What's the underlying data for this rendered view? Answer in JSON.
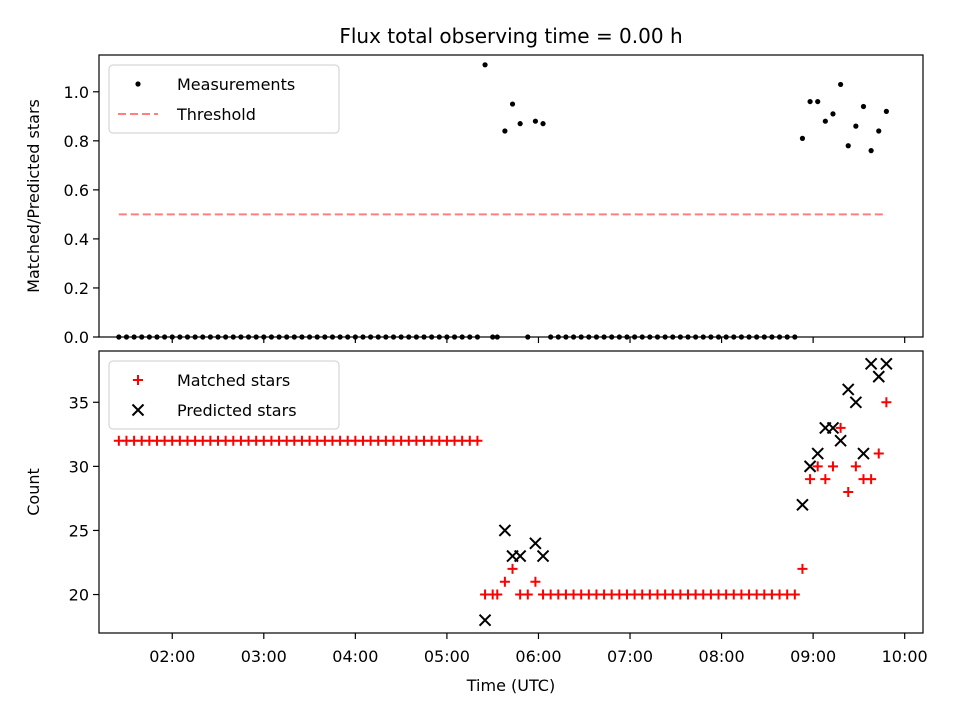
{
  "figure": {
    "title": "Flux total observing time = 0.00 h"
  },
  "chart_data": [
    {
      "type": "scatter",
      "xlabel": "",
      "ylabel": "Matched/Predicted stars",
      "xlim": [
        "01:12",
        "10:12"
      ],
      "ylim": [
        0,
        1.15
      ],
      "yticks": [
        "0.0",
        "0.2",
        "0.4",
        "0.6",
        "0.8",
        "1.0"
      ],
      "legend": {
        "placement": "upper-left",
        "entries": [
          "Measurements",
          "Threshold"
        ]
      },
      "series": [
        {
          "name": "Measurements",
          "marker": "dot",
          "color": "#000000",
          "points": [
            [
              "01:25",
              0
            ],
            [
              "01:30",
              0
            ],
            [
              "01:35",
              0
            ],
            [
              "01:40",
              0
            ],
            [
              "01:45",
              0
            ],
            [
              "01:50",
              0
            ],
            [
              "01:55",
              0
            ],
            [
              "02:00",
              0
            ],
            [
              "02:05",
              0
            ],
            [
              "02:10",
              0
            ],
            [
              "02:15",
              0
            ],
            [
              "02:20",
              0
            ],
            [
              "02:25",
              0
            ],
            [
              "02:30",
              0
            ],
            [
              "02:35",
              0
            ],
            [
              "02:40",
              0
            ],
            [
              "02:45",
              0
            ],
            [
              "02:50",
              0
            ],
            [
              "02:55",
              0
            ],
            [
              "03:00",
              0
            ],
            [
              "03:05",
              0
            ],
            [
              "03:10",
              0
            ],
            [
              "03:15",
              0
            ],
            [
              "03:20",
              0
            ],
            [
              "03:25",
              0
            ],
            [
              "03:30",
              0
            ],
            [
              "03:35",
              0
            ],
            [
              "03:40",
              0
            ],
            [
              "03:45",
              0
            ],
            [
              "03:50",
              0
            ],
            [
              "03:55",
              0
            ],
            [
              "04:00",
              0
            ],
            [
              "04:05",
              0
            ],
            [
              "04:10",
              0
            ],
            [
              "04:15",
              0
            ],
            [
              "04:20",
              0
            ],
            [
              "04:25",
              0
            ],
            [
              "04:30",
              0
            ],
            [
              "04:35",
              0
            ],
            [
              "04:40",
              0
            ],
            [
              "04:45",
              0
            ],
            [
              "04:50",
              0
            ],
            [
              "04:55",
              0
            ],
            [
              "05:00",
              0
            ],
            [
              "05:05",
              0
            ],
            [
              "05:10",
              0
            ],
            [
              "05:15",
              0
            ],
            [
              "05:20",
              0
            ],
            [
              "05:25",
              1.11
            ],
            [
              "05:30",
              0
            ],
            [
              "05:33",
              0
            ],
            [
              "05:38",
              0.84
            ],
            [
              "05:43",
              0.95
            ],
            [
              "05:48",
              0.87
            ],
            [
              "05:53",
              0
            ],
            [
              "05:58",
              0.88
            ],
            [
              "06:03",
              0.87
            ],
            [
              "06:08",
              0
            ],
            [
              "06:13",
              0
            ],
            [
              "06:18",
              0
            ],
            [
              "06:23",
              0
            ],
            [
              "06:28",
              0
            ],
            [
              "06:33",
              0
            ],
            [
              "06:38",
              0
            ],
            [
              "06:43",
              0
            ],
            [
              "06:48",
              0
            ],
            [
              "06:53",
              0
            ],
            [
              "06:58",
              0
            ],
            [
              "07:03",
              0
            ],
            [
              "07:08",
              0
            ],
            [
              "07:13",
              0
            ],
            [
              "07:18",
              0
            ],
            [
              "07:23",
              0
            ],
            [
              "07:28",
              0
            ],
            [
              "07:33",
              0
            ],
            [
              "07:38",
              0
            ],
            [
              "07:43",
              0
            ],
            [
              "07:48",
              0
            ],
            [
              "07:53",
              0
            ],
            [
              "07:58",
              0
            ],
            [
              "08:03",
              0
            ],
            [
              "08:08",
              0
            ],
            [
              "08:13",
              0
            ],
            [
              "08:18",
              0
            ],
            [
              "08:23",
              0
            ],
            [
              "08:28",
              0
            ],
            [
              "08:33",
              0
            ],
            [
              "08:38",
              0
            ],
            [
              "08:43",
              0
            ],
            [
              "08:48",
              0
            ],
            [
              "08:53",
              0.81
            ],
            [
              "08:58",
              0.96
            ],
            [
              "09:03",
              0.96
            ],
            [
              "09:08",
              0.88
            ],
            [
              "09:13",
              0.91
            ],
            [
              "09:18",
              1.03
            ],
            [
              "09:23",
              0.78
            ],
            [
              "09:28",
              0.86
            ],
            [
              "09:33",
              0.94
            ],
            [
              "09:38",
              0.76
            ],
            [
              "09:43",
              0.84
            ],
            [
              "09:48",
              0.92
            ]
          ]
        },
        {
          "name": "Threshold",
          "style": "dashed",
          "color": "#ff7f7f",
          "points": [
            [
              "01:25",
              0.5
            ],
            [
              "09:48",
              0.5
            ]
          ]
        }
      ]
    },
    {
      "type": "scatter",
      "xlabel": "Time (UTC)",
      "ylabel": "Count",
      "xlim": [
        "01:12",
        "10:12"
      ],
      "ylim": [
        17,
        39
      ],
      "xticks": [
        "02:00",
        "03:00",
        "04:00",
        "05:00",
        "06:00",
        "07:00",
        "08:00",
        "09:00",
        "10:00"
      ],
      "yticks": [
        "20",
        "25",
        "30",
        "35"
      ],
      "legend": {
        "placement": "upper-left",
        "entries": [
          "Matched stars",
          "Predicted stars"
        ]
      },
      "series": [
        {
          "name": "Matched stars",
          "marker": "plus",
          "color": "#ff0000",
          "points": [
            [
              "01:25",
              32
            ],
            [
              "01:30",
              32
            ],
            [
              "01:35",
              32
            ],
            [
              "01:40",
              32
            ],
            [
              "01:45",
              32
            ],
            [
              "01:50",
              32
            ],
            [
              "01:55",
              32
            ],
            [
              "02:00",
              32
            ],
            [
              "02:05",
              32
            ],
            [
              "02:10",
              32
            ],
            [
              "02:15",
              32
            ],
            [
              "02:20",
              32
            ],
            [
              "02:25",
              32
            ],
            [
              "02:30",
              32
            ],
            [
              "02:35",
              32
            ],
            [
              "02:40",
              32
            ],
            [
              "02:45",
              32
            ],
            [
              "02:50",
              32
            ],
            [
              "02:55",
              32
            ],
            [
              "03:00",
              32
            ],
            [
              "03:05",
              32
            ],
            [
              "03:10",
              32
            ],
            [
              "03:15",
              32
            ],
            [
              "03:20",
              32
            ],
            [
              "03:25",
              32
            ],
            [
              "03:30",
              32
            ],
            [
              "03:35",
              32
            ],
            [
              "03:40",
              32
            ],
            [
              "03:45",
              32
            ],
            [
              "03:50",
              32
            ],
            [
              "03:55",
              32
            ],
            [
              "04:00",
              32
            ],
            [
              "04:05",
              32
            ],
            [
              "04:10",
              32
            ],
            [
              "04:15",
              32
            ],
            [
              "04:20",
              32
            ],
            [
              "04:25",
              32
            ],
            [
              "04:30",
              32
            ],
            [
              "04:35",
              32
            ],
            [
              "04:40",
              32
            ],
            [
              "04:45",
              32
            ],
            [
              "04:50",
              32
            ],
            [
              "04:55",
              32
            ],
            [
              "05:00",
              32
            ],
            [
              "05:05",
              32
            ],
            [
              "05:10",
              32
            ],
            [
              "05:15",
              32
            ],
            [
              "05:20",
              32
            ],
            [
              "05:25",
              20
            ],
            [
              "05:30",
              20
            ],
            [
              "05:33",
              20
            ],
            [
              "05:38",
              21
            ],
            [
              "05:43",
              22
            ],
            [
              "05:48",
              20
            ],
            [
              "05:53",
              20
            ],
            [
              "05:58",
              21
            ],
            [
              "06:03",
              20
            ],
            [
              "06:08",
              20
            ],
            [
              "06:13",
              20
            ],
            [
              "06:18",
              20
            ],
            [
              "06:23",
              20
            ],
            [
              "06:28",
              20
            ],
            [
              "06:33",
              20
            ],
            [
              "06:38",
              20
            ],
            [
              "06:43",
              20
            ],
            [
              "06:48",
              20
            ],
            [
              "06:53",
              20
            ],
            [
              "06:58",
              20
            ],
            [
              "07:03",
              20
            ],
            [
              "07:08",
              20
            ],
            [
              "07:13",
              20
            ],
            [
              "07:18",
              20
            ],
            [
              "07:23",
              20
            ],
            [
              "07:28",
              20
            ],
            [
              "07:33",
              20
            ],
            [
              "07:38",
              20
            ],
            [
              "07:43",
              20
            ],
            [
              "07:48",
              20
            ],
            [
              "07:53",
              20
            ],
            [
              "07:58",
              20
            ],
            [
              "08:03",
              20
            ],
            [
              "08:08",
              20
            ],
            [
              "08:13",
              20
            ],
            [
              "08:18",
              20
            ],
            [
              "08:23",
              20
            ],
            [
              "08:28",
              20
            ],
            [
              "08:33",
              20
            ],
            [
              "08:38",
              20
            ],
            [
              "08:43",
              20
            ],
            [
              "08:48",
              20
            ],
            [
              "08:53",
              22
            ],
            [
              "08:58",
              29
            ],
            [
              "09:03",
              30
            ],
            [
              "09:08",
              29
            ],
            [
              "09:13",
              30
            ],
            [
              "09:18",
              33
            ],
            [
              "09:23",
              28
            ],
            [
              "09:28",
              30
            ],
            [
              "09:33",
              29
            ],
            [
              "09:38",
              29
            ],
            [
              "09:43",
              31
            ],
            [
              "09:48",
              35
            ]
          ]
        },
        {
          "name": "Predicted stars",
          "marker": "x",
          "color": "#000000",
          "points": [
            [
              "05:25",
              18
            ],
            [
              "05:38",
              25
            ],
            [
              "05:43",
              23
            ],
            [
              "05:48",
              23
            ],
            [
              "05:58",
              24
            ],
            [
              "06:03",
              23
            ],
            [
              "08:53",
              27
            ],
            [
              "08:58",
              30
            ],
            [
              "09:03",
              31
            ],
            [
              "09:08",
              33
            ],
            [
              "09:13",
              33
            ],
            [
              "09:18",
              32
            ],
            [
              "09:23",
              36
            ],
            [
              "09:28",
              35
            ],
            [
              "09:33",
              31
            ],
            [
              "09:38",
              38
            ],
            [
              "09:43",
              37
            ],
            [
              "09:48",
              38
            ]
          ]
        }
      ]
    }
  ]
}
